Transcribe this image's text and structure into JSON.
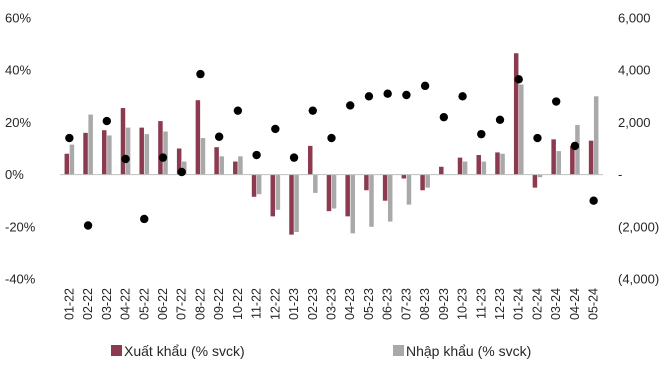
{
  "chart_data": {
    "type": "bar",
    "categories": [
      "01-22",
      "02-22",
      "03-22",
      "04-22",
      "05-22",
      "06-22",
      "07-22",
      "08-22",
      "09-22",
      "10-22",
      "11-22",
      "12-22",
      "01-23",
      "02-23",
      "03-23",
      "04-23",
      "05-23",
      "06-23",
      "07-23",
      "08-23",
      "09-23",
      "10-23",
      "11-23",
      "12-23",
      "01-24",
      "02-24",
      "03-24",
      "04-24",
      "05-24"
    ],
    "series": [
      {
        "name": "Xuất khẩu (% svck)",
        "color": "#8B3A4F",
        "values": [
          8,
          16,
          17,
          25.5,
          18,
          20.5,
          10,
          28.5,
          10.5,
          5,
          -8.5,
          -16,
          -23,
          11,
          -14,
          -16,
          -6,
          -10,
          -1.5,
          -6,
          3,
          6.5,
          7.5,
          8.5,
          46.5,
          -5,
          13.5,
          11,
          13
        ]
      },
      {
        "name": "Nhập khẩu (% svck)",
        "color": "#A9A9A9",
        "values": [
          11.5,
          23,
          15,
          18,
          15.5,
          16.5,
          5,
          14,
          7,
          7,
          -7.5,
          -13.5,
          -22,
          -7,
          -13,
          -22.5,
          -20,
          -18,
          -11.5,
          -5,
          0,
          5,
          5,
          8,
          34.5,
          -1,
          9,
          19,
          30
        ]
      },
      {
        "name": "",
        "type": "scatter",
        "axis": "right",
        "color": "#000000",
        "values": [
          1400,
          -1950,
          2050,
          600,
          -1700,
          650,
          100,
          3850,
          1450,
          2450,
          750,
          1750,
          650,
          2450,
          1400,
          2650,
          3000,
          3100,
          3050,
          3400,
          2200,
          3000,
          1550,
          2100,
          3650,
          1400,
          2800,
          1100,
          -1000
        ]
      }
    ],
    "ylim": [
      -40,
      60
    ],
    "yticks": [
      "60%",
      "40%",
      "20%",
      "0%",
      "-20%",
      "-40%"
    ],
    "y2lim": [
      -4000,
      6000
    ],
    "y2ticks": [
      "6,000",
      "4,000",
      "2,000",
      "-",
      "(2,000)",
      "(4,000)"
    ],
    "legend_position": "bottom",
    "grid": false
  }
}
